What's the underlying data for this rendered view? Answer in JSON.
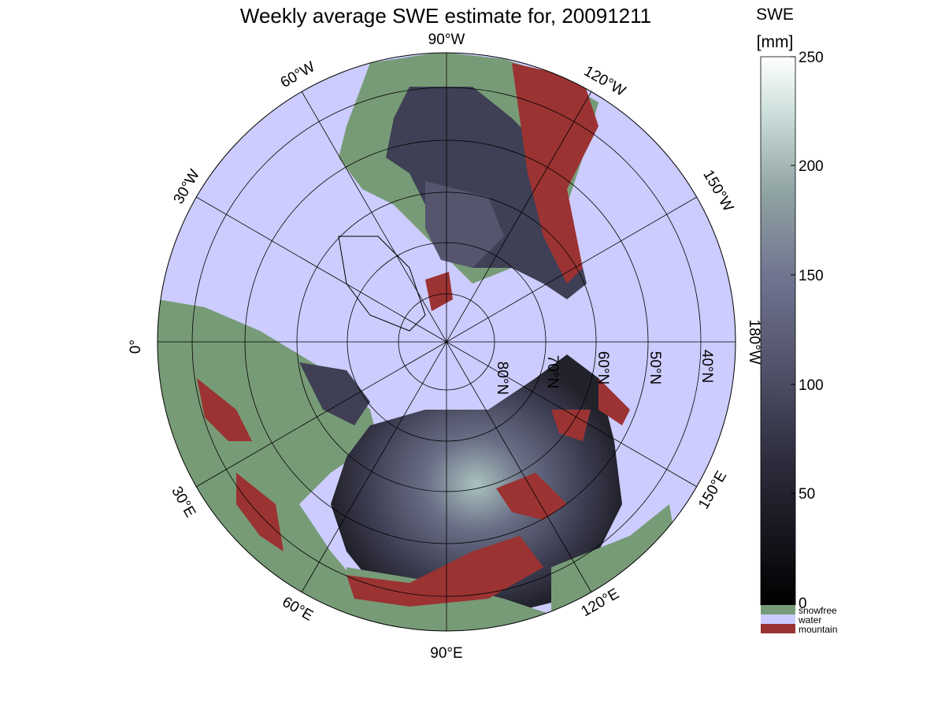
{
  "title": "Weekly average SWE estimate for, 20091211",
  "colorbar": {
    "title_line1": "SWE",
    "title_line2": "[mm]",
    "ticks": [
      "0",
      "50",
      "100",
      "150",
      "200",
      "250"
    ],
    "range": [
      0,
      250
    ],
    "categories": [
      {
        "label": "snowfree",
        "color": "#779b77"
      },
      {
        "label": "water",
        "color": "#ccccff"
      },
      {
        "label": "mountain",
        "color": "#9b3333"
      }
    ]
  },
  "map": {
    "projection": "north polar stereographic",
    "lon_labels": [
      "90°W",
      "120°W",
      "150°W",
      "180°W",
      "150°E",
      "120°E",
      "90°E",
      "60°E",
      "30°E",
      "0°",
      "30°W",
      "60°W"
    ],
    "lat_labels": [
      "80°N",
      "70°N",
      "60°N",
      "50°N",
      "40°N"
    ],
    "colors": {
      "water": "#ccccff",
      "snowfree": "#779b77",
      "mountain": "#9b3333",
      "swe_low": "#1a1a24",
      "swe_mid": "#4a4a66",
      "swe_high": "#9fb3b3"
    }
  }
}
